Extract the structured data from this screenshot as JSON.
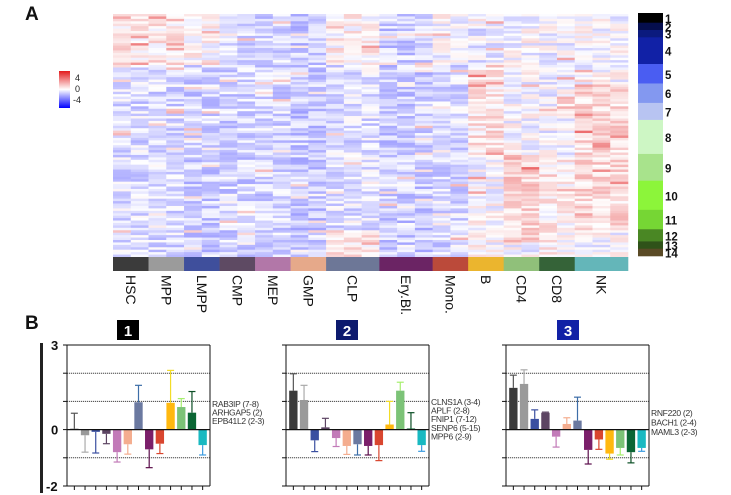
{
  "panel_a_label": "A",
  "panel_b_label": "B",
  "chart_data": [
    {
      "type": "heatmap",
      "title": "",
      "color_scale": {
        "label_high": "4",
        "label_mid": "0",
        "label_low": "-4",
        "min": -4,
        "max": 4,
        "colors": [
          "#0000ff",
          "#ffffff",
          "#e31a1c"
        ]
      },
      "cell_types": [
        {
          "name": "HSC",
          "color": "#3b3b3b",
          "columns": 2
        },
        {
          "name": "MPP",
          "color": "#9b9b9b",
          "columns": 2
        },
        {
          "name": "LMPP",
          "color": "#3f4f9c",
          "columns": 2
        },
        {
          "name": "CMP",
          "color": "#5e4a63",
          "columns": 2
        },
        {
          "name": "MEP",
          "color": "#b277a8",
          "columns": 2
        },
        {
          "name": "GMP",
          "color": "#e6a98a",
          "columns": 2
        },
        {
          "name": "CLP",
          "color": "#6d7797",
          "columns": 3
        },
        {
          "name": "Ery.Bl.",
          "color": "#6b2464",
          "columns": 3
        },
        {
          "name": "Mono.",
          "color": "#bb4a3a",
          "columns": 2
        },
        {
          "name": "B",
          "color": "#ebb52e",
          "columns": 2
        },
        {
          "name": "CD4",
          "color": "#90c07a",
          "columns": 2
        },
        {
          "name": "CD8",
          "color": "#356338",
          "columns": 2
        },
        {
          "name": "NK",
          "color": "#64b6b9",
          "columns": 3
        }
      ],
      "row_clusters": [
        {
          "id": "1",
          "color": "#000000",
          "rows": 4
        },
        {
          "id": "2",
          "color": "#050e4d",
          "rows": 3
        },
        {
          "id": "3",
          "color": "#0b1a7e",
          "rows": 3
        },
        {
          "id": "4",
          "color": "#1121a6",
          "rows": 11
        },
        {
          "id": "5",
          "color": "#4a5df2",
          "rows": 8
        },
        {
          "id": "6",
          "color": "#8398f0",
          "rows": 8
        },
        {
          "id": "7",
          "color": "#b8c4f2",
          "rows": 7
        },
        {
          "id": "8",
          "color": "#cdf6c4",
          "rows": 14
        },
        {
          "id": "9",
          "color": "#a8e38c",
          "rows": 11
        },
        {
          "id": "10",
          "color": "#8cf53a",
          "rows": 12
        },
        {
          "id": "11",
          "color": "#76d634",
          "rows": 8
        },
        {
          "id": "12",
          "color": "#4a8724",
          "rows": 5
        },
        {
          "id": "13",
          "color": "#2f5219",
          "rows": 3
        },
        {
          "id": "14",
          "color": "#5a4a26",
          "rows": 3
        }
      ]
    },
    {
      "type": "bar",
      "panel": "1",
      "panel_color": "#000000",
      "ylim": [
        -2,
        3
      ],
      "yticks": [
        "3",
        "0",
        "-2"
      ],
      "gridlines": [
        2,
        1,
        -1
      ],
      "categories": [
        "HSC",
        "MPP",
        "LMPP",
        "CMP",
        "MEP",
        "GMP",
        "CLP",
        "Ery.Bl.",
        "Mono.",
        "B",
        "CD4",
        "CD8",
        "NK"
      ],
      "values": [
        0.03,
        -0.2,
        -0.08,
        -0.15,
        -0.8,
        -0.52,
        0.97,
        -0.7,
        -0.5,
        0.95,
        0.8,
        0.6,
        -0.55
      ],
      "errors": [
        0.55,
        0.6,
        0.75,
        0.35,
        0.35,
        0.35,
        0.6,
        0.65,
        0.35,
        1.15,
        0.3,
        0.75,
        0.35
      ],
      "genes": [
        "RAB3IP (7-8)",
        "ARHGAP5 (2)",
        "EPB41L2 (2-3)"
      ]
    },
    {
      "type": "bar",
      "panel": "2",
      "panel_color": "#0d1a6e",
      "ylim": [
        -2,
        3
      ],
      "gridlines": [
        2,
        1,
        -1
      ],
      "categories": [
        "HSC",
        "MPP",
        "LMPP",
        "CMP",
        "MEP",
        "GMP",
        "CLP",
        "Ery.Bl.",
        "Mono.",
        "B",
        "CD4",
        "CD8",
        "NK"
      ],
      "values": [
        1.38,
        1.05,
        -0.38,
        0.08,
        -0.3,
        -0.58,
        -0.52,
        -0.58,
        -0.55,
        0.18,
        1.38,
        0.04,
        -0.55
      ],
      "errors": [
        0.6,
        0.52,
        0.4,
        0.32,
        0.3,
        0.3,
        0.38,
        0.32,
        0.55,
        0.82,
        0.3,
        0.56,
        0.22
      ],
      "genes": [
        "CLNS1A (3-4)",
        "APLF (2-8)",
        "FNIP1 (7-12)",
        "SENP6 (5-15)",
        "MPP6 (2-9)"
      ]
    },
    {
      "type": "bar",
      "panel": "3",
      "panel_color": "#1121a6",
      "ylim": [
        -2,
        3
      ],
      "gridlines": [
        2,
        1,
        -1
      ],
      "categories": [
        "HSC",
        "MPP",
        "LMPP",
        "CMP",
        "MEP",
        "GMP",
        "CLP",
        "Ery.Bl.",
        "Mono.",
        "B",
        "CD4",
        "CD8",
        "NK"
      ],
      "values": [
        1.48,
        1.62,
        0.38,
        0.6,
        -0.25,
        0.2,
        0.32,
        -0.72,
        -0.35,
        -0.85,
        -0.65,
        -0.8,
        -0.65
      ],
      "errors": [
        0.45,
        0.5,
        0.32,
        0.02,
        0.37,
        0.22,
        0.83,
        0.5,
        0.35,
        0.2,
        0.25,
        0.38,
        0.12
      ],
      "genes": [
        "RNF220 (2)",
        "BACH1 (2-4)",
        "MAML3 (2-3)"
      ]
    }
  ],
  "bar_colors": [
    "#3a3a3a",
    "#9a9a9a",
    "#3a4fa0",
    "#5d4563",
    "#c27ab8",
    "#f4ad8f",
    "#6b79a0",
    "#7b1f6a",
    "#d9462f",
    "#ffb80f",
    "#7cc377",
    "#0b6634",
    "#19b9c1"
  ],
  "error_colors": [
    "#555555",
    "#aaaaaa",
    "#3a4fa0",
    "#5d4563",
    "#c27ab8",
    "#f4ad8f",
    "#3d6ea8",
    "#5a0d4a",
    "#d9462f",
    "#f2dc27",
    "#a6ef6e",
    "#0b4f25",
    "#3b9be0"
  ]
}
